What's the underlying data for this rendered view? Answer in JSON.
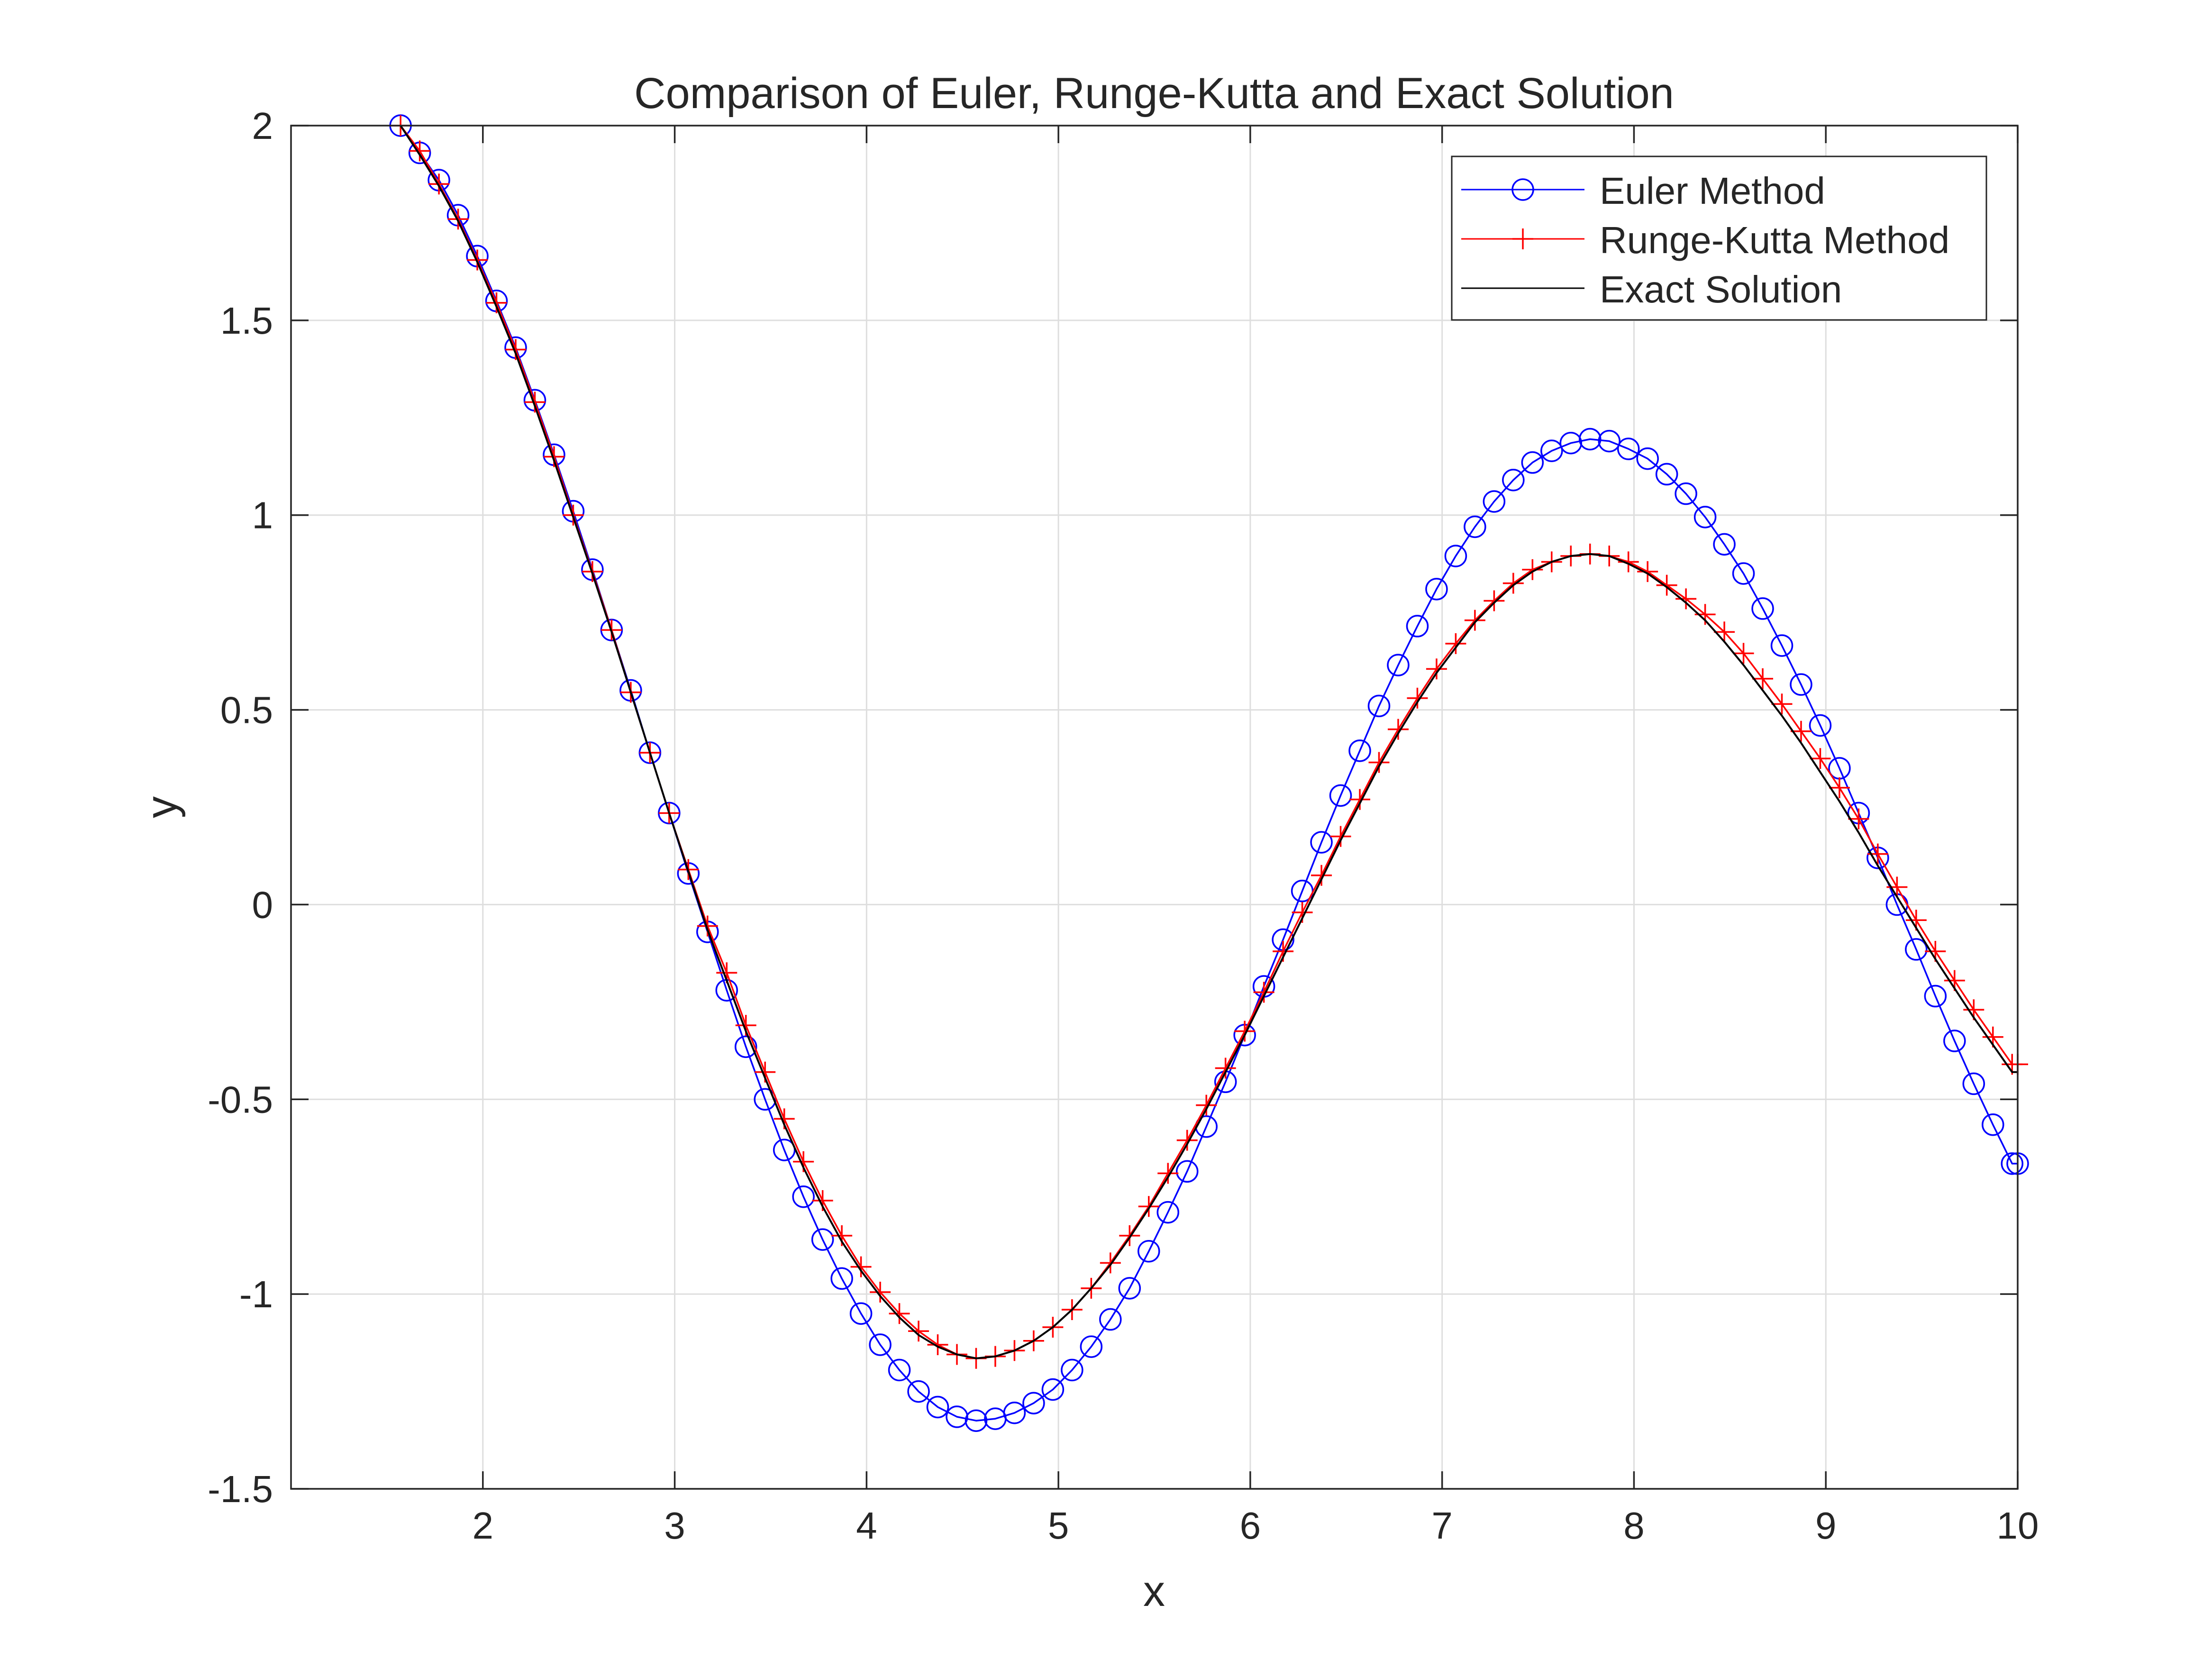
{
  "chart_data": {
    "type": "line",
    "title": "Comparison of Euler, Runge-Kutta and Exact Solution",
    "xlabel": "x",
    "ylabel": "y",
    "xlim": [
      1.0,
      10.0
    ],
    "ylim": [
      -1.5,
      2.0
    ],
    "xticks": [
      2,
      3,
      4,
      5,
      6,
      7,
      8,
      9,
      10
    ],
    "yticks": [
      -1.5,
      -1,
      -0.5,
      0,
      0.5,
      1,
      1.5,
      2
    ],
    "xtick_labels": [
      "2",
      "3",
      "4",
      "5",
      "6",
      "7",
      "8",
      "9",
      "10"
    ],
    "ytick_labels": [
      "-1.5",
      "-1",
      "-0.5",
      "0",
      "0.5",
      "1",
      "1.5",
      "2"
    ],
    "grid": true,
    "legend_position": "top-right",
    "x": [
      1.571,
      1.671,
      1.771,
      1.871,
      1.971,
      2.071,
      2.171,
      2.271,
      2.371,
      2.471,
      2.571,
      2.671,
      2.771,
      2.871,
      2.971,
      3.071,
      3.171,
      3.271,
      3.371,
      3.471,
      3.571,
      3.671,
      3.771,
      3.871,
      3.971,
      4.071,
      4.171,
      4.271,
      4.371,
      4.471,
      4.571,
      4.671,
      4.771,
      4.871,
      4.971,
      5.071,
      5.171,
      5.271,
      5.371,
      5.471,
      5.571,
      5.671,
      5.771,
      5.871,
      5.971,
      6.071,
      6.171,
      6.271,
      6.371,
      6.471,
      6.571,
      6.671,
      6.771,
      6.871,
      6.971,
      7.071,
      7.171,
      7.271,
      7.371,
      7.471,
      7.571,
      7.671,
      7.771,
      7.871,
      7.971,
      8.071,
      8.171,
      8.271,
      8.371,
      8.471,
      8.571,
      8.671,
      8.771,
      8.871,
      8.971,
      9.071,
      9.171,
      9.271,
      9.371,
      9.471,
      9.571,
      9.671,
      9.771,
      9.871,
      9.971,
      10.0
    ],
    "series": [
      {
        "name": "Euler Method",
        "color": "#0000ff",
        "marker": "circle",
        "values": [
          2.0,
          1.93,
          1.86,
          1.77,
          1.665,
          1.55,
          1.43,
          1.295,
          1.155,
          1.01,
          0.86,
          0.705,
          0.55,
          0.39,
          0.235,
          0.08,
          -0.07,
          -0.22,
          -0.365,
          -0.5,
          -0.63,
          -0.75,
          -0.86,
          -0.96,
          -1.05,
          -1.13,
          -1.195,
          -1.25,
          -1.29,
          -1.315,
          -1.325,
          -1.32,
          -1.305,
          -1.28,
          -1.245,
          -1.195,
          -1.135,
          -1.065,
          -0.985,
          -0.89,
          -0.79,
          -0.685,
          -0.57,
          -0.455,
          -0.335,
          -0.21,
          -0.09,
          0.035,
          0.16,
          0.28,
          0.395,
          0.51,
          0.615,
          0.715,
          0.81,
          0.895,
          0.97,
          1.035,
          1.09,
          1.135,
          1.165,
          1.185,
          1.195,
          1.19,
          1.17,
          1.145,
          1.105,
          1.055,
          0.995,
          0.925,
          0.85,
          0.76,
          0.665,
          0.565,
          0.46,
          0.35,
          0.235,
          0.12,
          0.0,
          -0.115,
          -0.235,
          -0.35,
          -0.46,
          -0.565,
          -0.665,
          -0.665
        ]
      },
      {
        "name": "Runge-Kutta Method",
        "color": "#ff0000",
        "marker": "plus",
        "values": [
          2.0,
          1.935,
          1.85,
          1.76,
          1.655,
          1.545,
          1.425,
          1.29,
          1.15,
          1.0,
          0.855,
          0.705,
          0.545,
          0.39,
          0.235,
          0.09,
          -0.055,
          -0.175,
          -0.31,
          -0.43,
          -0.55,
          -0.66,
          -0.76,
          -0.85,
          -0.93,
          -0.995,
          -1.05,
          -1.095,
          -1.13,
          -1.155,
          -1.165,
          -1.16,
          -1.145,
          -1.12,
          -1.085,
          -1.04,
          -0.985,
          -0.92,
          -0.85,
          -0.775,
          -0.69,
          -0.605,
          -0.515,
          -0.42,
          -0.325,
          -0.225,
          -0.12,
          -0.02,
          0.075,
          0.175,
          0.27,
          0.365,
          0.45,
          0.53,
          0.605,
          0.67,
          0.73,
          0.78,
          0.825,
          0.86,
          0.88,
          0.895,
          0.9,
          0.895,
          0.88,
          0.855,
          0.82,
          0.785,
          0.745,
          0.7,
          0.645,
          0.58,
          0.515,
          0.445,
          0.375,
          0.3,
          0.22,
          0.13,
          0.045,
          -0.04,
          -0.12,
          -0.195,
          -0.27,
          -0.34,
          -0.41,
          -0.41
        ]
      },
      {
        "name": "Exact Solution",
        "color": "#000000",
        "marker": "none",
        "values": [
          2.0,
          1.925,
          1.845,
          1.755,
          1.65,
          1.535,
          1.415,
          1.28,
          1.14,
          0.995,
          0.85,
          0.7,
          0.545,
          0.39,
          0.235,
          0.085,
          -0.065,
          -0.195,
          -0.325,
          -0.445,
          -0.565,
          -0.675,
          -0.775,
          -0.865,
          -0.94,
          -1.005,
          -1.06,
          -1.105,
          -1.135,
          -1.155,
          -1.165,
          -1.16,
          -1.145,
          -1.12,
          -1.085,
          -1.04,
          -0.985,
          -0.925,
          -0.855,
          -0.78,
          -0.7,
          -0.615,
          -0.525,
          -0.43,
          -0.335,
          -0.235,
          -0.135,
          -0.035,
          0.065,
          0.165,
          0.26,
          0.355,
          0.44,
          0.52,
          0.595,
          0.66,
          0.725,
          0.775,
          0.82,
          0.855,
          0.88,
          0.895,
          0.9,
          0.895,
          0.875,
          0.85,
          0.815,
          0.775,
          0.73,
          0.675,
          0.615,
          0.55,
          0.485,
          0.415,
          0.34,
          0.265,
          0.185,
          0.1,
          0.02,
          -0.06,
          -0.14,
          -0.215,
          -0.29,
          -0.36,
          -0.43,
          -0.43
        ]
      }
    ]
  }
}
